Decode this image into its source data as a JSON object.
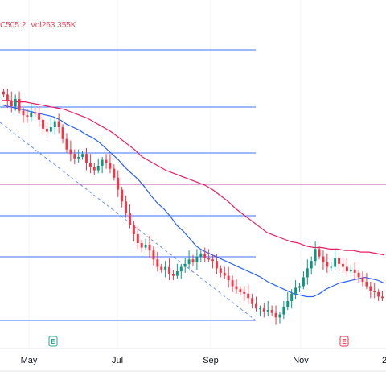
{
  "header": {
    "close_fragment": "C505.2",
    "vol_label": "Vol",
    "vol_value": "263.355K"
  },
  "colors": {
    "up": "#089981",
    "down": "#f23645",
    "fib_line": "#2962ff",
    "fib_mid": "#9c27b0",
    "ma_fast": "#2962ff",
    "ma_slow": "#e91e63",
    "earnings_badge": "#26a69a",
    "earnings_badge_red": "#f23645"
  },
  "events": [
    {
      "name": "earnings-badge-may",
      "label": "E",
      "color": "earnings_badge"
    },
    {
      "name": "earnings-badge-nov",
      "label": "E",
      "color": "earnings_badge_red"
    }
  ],
  "chart_data": {
    "type": "candlestick",
    "x_axis_labels": [
      "May",
      "Jul",
      "Sep",
      "Nov",
      "2"
    ],
    "fib_levels": [
      1,
      0.786,
      0.618,
      0.5,
      0.382,
      0.236,
      0
    ],
    "candles_close": [
      392,
      388,
      384,
      389,
      381,
      378,
      377,
      380,
      379,
      375,
      369,
      367,
      370,
      374,
      370,
      362,
      355,
      352,
      349,
      350,
      352,
      346,
      343,
      341,
      344,
      348,
      346,
      342,
      336,
      328,
      320,
      312,
      304,
      298,
      292,
      289,
      291,
      287,
      281,
      276,
      274,
      276,
      271,
      270,
      273,
      276,
      278,
      281,
      279,
      283,
      285,
      282,
      281,
      280,
      275,
      272,
      270,
      267,
      263,
      261,
      259,
      258,
      255,
      251,
      248,
      248,
      246,
      247,
      245,
      242,
      244,
      249,
      253,
      258,
      262,
      263,
      269,
      275,
      280,
      288,
      283,
      279,
      276,
      276,
      282,
      278,
      276,
      273,
      274,
      272,
      269,
      266,
      263,
      260,
      259,
      256,
      255
    ],
    "ma_fast": [
      385,
      384,
      383,
      382,
      381,
      380,
      379,
      378,
      377,
      375,
      372,
      370,
      368,
      365,
      363,
      360,
      356,
      352,
      348,
      343,
      339,
      335,
      330,
      324,
      319,
      315,
      310,
      304,
      300,
      295,
      290,
      287,
      285,
      283,
      281,
      279,
      277,
      275,
      273,
      271,
      269,
      266,
      264,
      262,
      260,
      258,
      257,
      256,
      256,
      258,
      261,
      263,
      265,
      266,
      267,
      268,
      269,
      268,
      267,
      265
    ],
    "ma_slow": [
      388,
      388,
      387,
      387,
      386,
      385,
      384,
      383,
      382,
      380,
      378,
      376,
      373,
      370,
      367,
      363,
      359,
      355,
      350,
      347,
      344,
      341,
      339,
      337,
      335,
      333,
      331,
      328,
      324,
      320,
      315,
      311,
      307,
      303,
      299,
      297,
      295,
      293,
      292,
      290,
      289,
      289,
      288,
      288,
      287,
      287,
      286,
      286,
      285,
      284
    ]
  }
}
